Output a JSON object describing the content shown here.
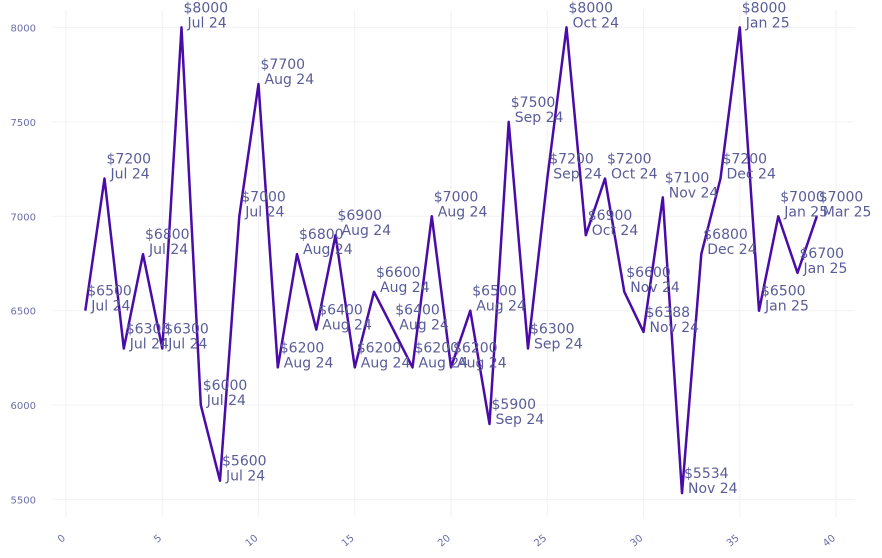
{
  "chart_data": {
    "type": "line",
    "title": "",
    "xlabel": "",
    "ylabel": "",
    "xlim": [
      0,
      40
    ],
    "ylim": [
      5450,
      8050
    ],
    "x_ticks": [
      0,
      5,
      10,
      15,
      20,
      25,
      30,
      35,
      40
    ],
    "y_ticks": [
      5500,
      6000,
      6500,
      7000,
      7500,
      8000
    ],
    "grid": true,
    "legend": "none",
    "line_color": "#4a0ca8",
    "label_color": "#5a5c99",
    "tick_color": "#6b6ea8",
    "series": [
      {
        "points": [
          {
            "x": 1,
            "y": 6500,
            "value": "$6500",
            "date": "Jul 24"
          },
          {
            "x": 2,
            "y": 7200,
            "value": "$7200",
            "date": "Jul 24"
          },
          {
            "x": 3,
            "y": 6300,
            "value": "$6300",
            "date": "Jul 24"
          },
          {
            "x": 4,
            "y": 6800,
            "value": "$6800",
            "date": "Jul 24"
          },
          {
            "x": 5,
            "y": 6300,
            "value": "$6300",
            "date": "Jul 24"
          },
          {
            "x": 6,
            "y": 8000,
            "value": "$8000",
            "date": "Jul 24"
          },
          {
            "x": 7,
            "y": 6000,
            "value": "$6000",
            "date": "Jul 24"
          },
          {
            "x": 8,
            "y": 5600,
            "value": "$5600",
            "date": "Jul 24"
          },
          {
            "x": 9,
            "y": 7000,
            "value": "$7000",
            "date": "Jul 24"
          },
          {
            "x": 10,
            "y": 7700,
            "value": "$7700",
            "date": "Aug 24"
          },
          {
            "x": 11,
            "y": 6200,
            "value": "$6200",
            "date": "Aug 24"
          },
          {
            "x": 12,
            "y": 6800,
            "value": "$6800",
            "date": "Aug 24"
          },
          {
            "x": 13,
            "y": 6400,
            "value": "$6400",
            "date": "Aug 24"
          },
          {
            "x": 14,
            "y": 6900,
            "value": "$6900",
            "date": "Aug 24"
          },
          {
            "x": 15,
            "y": 6200,
            "value": "$6200",
            "date": "Aug 24"
          },
          {
            "x": 16,
            "y": 6600,
            "value": "$6600",
            "date": "Aug 24"
          },
          {
            "x": 17,
            "y": 6400,
            "value": "$6400",
            "date": "Aug 24"
          },
          {
            "x": 18,
            "y": 6200,
            "value": "$6200",
            "date": "Aug 24"
          },
          {
            "x": 19,
            "y": 7000,
            "value": "$7000",
            "date": "Aug 24"
          },
          {
            "x": 20,
            "y": 6200,
            "value": "$6200",
            "date": "Aug 24"
          },
          {
            "x": 21,
            "y": 6500,
            "value": "$6500",
            "date": "Aug 24"
          },
          {
            "x": 22,
            "y": 5900,
            "value": "$5900",
            "date": "Sep 24"
          },
          {
            "x": 23,
            "y": 7500,
            "value": "$7500",
            "date": "Sep 24"
          },
          {
            "x": 24,
            "y": 6300,
            "value": "$6300",
            "date": "Sep 24"
          },
          {
            "x": 25,
            "y": 7200,
            "value": "$7200",
            "date": "Sep 24"
          },
          {
            "x": 26,
            "y": 8000,
            "value": "$8000",
            "date": "Oct 24"
          },
          {
            "x": 27,
            "y": 6900,
            "value": "$6900",
            "date": "Oct 24"
          },
          {
            "x": 28,
            "y": 7200,
            "value": "$7200",
            "date": "Oct 24"
          },
          {
            "x": 29,
            "y": 6600,
            "value": "$6600",
            "date": "Nov 24"
          },
          {
            "x": 30,
            "y": 6388,
            "value": "$6388",
            "date": "Nov 24"
          },
          {
            "x": 31,
            "y": 7100,
            "value": "$7100",
            "date": "Nov 24"
          },
          {
            "x": 32,
            "y": 5534,
            "value": "$5534",
            "date": "Nov 24"
          },
          {
            "x": 33,
            "y": 6800,
            "value": "$6800",
            "date": "Dec 24"
          },
          {
            "x": 34,
            "y": 7200,
            "value": "$7200",
            "date": "Dec 24"
          },
          {
            "x": 35,
            "y": 8000,
            "value": "$8000",
            "date": "Jan 25"
          },
          {
            "x": 36,
            "y": 6500,
            "value": "$6500",
            "date": "Jan 25"
          },
          {
            "x": 37,
            "y": 7000,
            "value": "$7000",
            "date": "Jan 25"
          },
          {
            "x": 38,
            "y": 6700,
            "value": "$6700",
            "date": "Jan 25"
          },
          {
            "x": 39,
            "y": 7000,
            "value": "$7000",
            "date": "Mar 25"
          }
        ]
      }
    ]
  }
}
